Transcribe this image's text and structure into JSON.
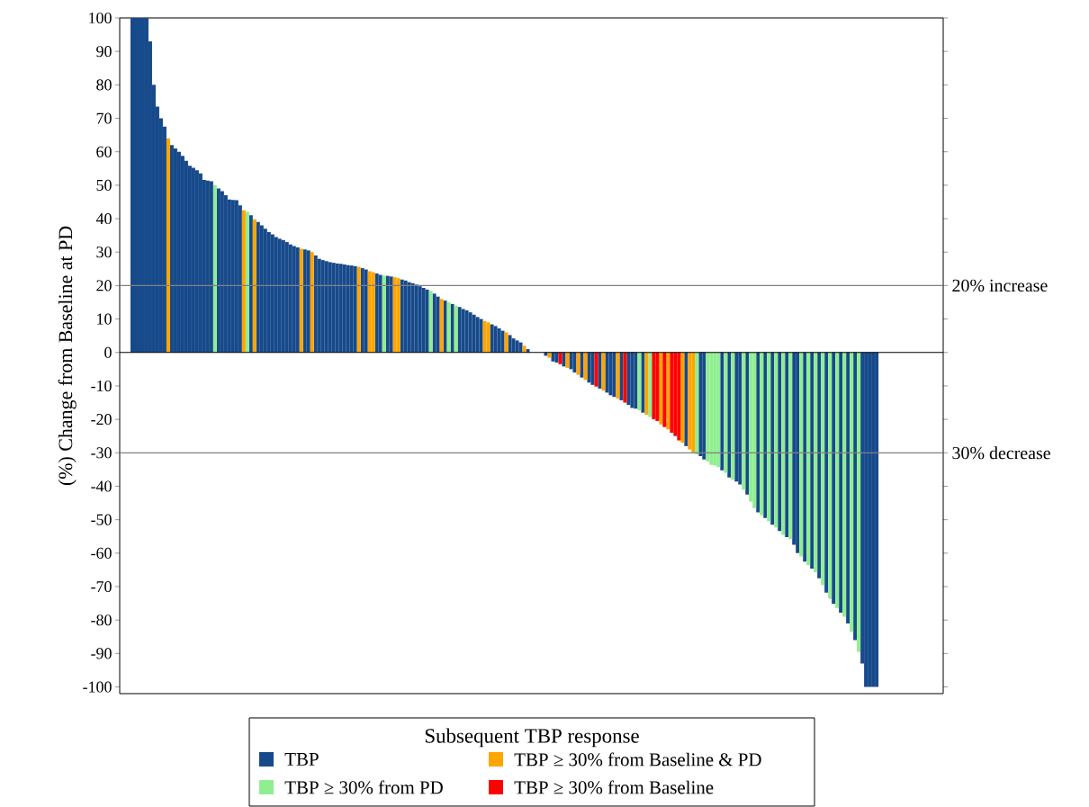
{
  "chart_data": {
    "type": "bar",
    "ylabel": "(%) Change from Baseline at PD",
    "legend_title": "Subsequent TBP response",
    "legend": "bottom",
    "categories": [
      null,
      null,
      null,
      null,
      null,
      null,
      null,
      null,
      null,
      null,
      null,
      null,
      null,
      null,
      null,
      null,
      null,
      null,
      null,
      null,
      null,
      null,
      null,
      null,
      null,
      null,
      null,
      null,
      null,
      null,
      null,
      null,
      null,
      null,
      null,
      null,
      null,
      null,
      null,
      null,
      null,
      null,
      null,
      null,
      null,
      null,
      null,
      null,
      null,
      null,
      null,
      null,
      null,
      null,
      null,
      null,
      null,
      null,
      null,
      null,
      null,
      null,
      null,
      null,
      null,
      null,
      null,
      null,
      null,
      null,
      null,
      null,
      null,
      null,
      null,
      null,
      null,
      null,
      null,
      null,
      null,
      null,
      null,
      null,
      null,
      null,
      null,
      null,
      null,
      null,
      null,
      null,
      null,
      null,
      null,
      null,
      null,
      null,
      null,
      null,
      null,
      null,
      null,
      null,
      null,
      null,
      null,
      null,
      null,
      null,
      null,
      null,
      null,
      null,
      null,
      null,
      null,
      null,
      null,
      null,
      null,
      null,
      null,
      null,
      null,
      null,
      null,
      null,
      null,
      null,
      null,
      null,
      null,
      null,
      null,
      null,
      null,
      null,
      null,
      null,
      null,
      null,
      null,
      null,
      null,
      null,
      null,
      null,
      null,
      null,
      null,
      null,
      null,
      null,
      null,
      null,
      null,
      null,
      null,
      null,
      null,
      null,
      null,
      null,
      null,
      null,
      null,
      null,
      null,
      null,
      null,
      null,
      null,
      null,
      null,
      null,
      null,
      null,
      null,
      null,
      null,
      null,
      null,
      null,
      null,
      null,
      null,
      null,
      null,
      null,
      null,
      null,
      null,
      null,
      null,
      null,
      null,
      null,
      null,
      null,
      null,
      null,
      null,
      null,
      null,
      null,
      null,
      null,
      null,
      null,
      null,
      null,
      null,
      null,
      null,
      null,
      null,
      null,
      null,
      null,
      null,
      null,
      null,
      null,
      null,
      null,
      null,
      null,
      null
    ],
    "ylim": [
      -102,
      100
    ],
    "yticks": [
      -100,
      -90,
      -80,
      -70,
      -60,
      -50,
      -40,
      -30,
      -20,
      -10,
      0,
      10,
      20,
      30,
      40,
      50,
      60,
      70,
      80,
      90,
      100
    ],
    "series": [
      {
        "name": "TBP",
        "color": "#174a8b",
        "values": [
          null,
          null,
          null,
          100,
          100,
          100,
          100,
          100,
          93,
          80,
          73.5,
          70,
          67.5,
          null,
          62,
          61,
          60,
          58.8,
          57.3,
          55.8,
          55.2,
          54.5,
          53.5,
          51.6,
          51.4,
          51.2,
          null,
          49,
          48.2,
          47,
          45.7,
          45.6,
          45.5,
          44,
          null,
          null,
          41,
          null,
          39,
          38,
          37,
          36,
          35.3,
          34.5,
          34,
          33.6,
          33,
          32.3,
          31.8,
          31.4,
          null,
          30.8,
          30.5,
          null,
          29,
          28,
          27.6,
          27.3,
          27,
          26.8,
          26.6,
          26.5,
          26.3,
          26.1,
          26,
          25.8,
          null,
          25.2,
          24.8,
          null,
          null,
          23.6,
          23.2,
          null,
          22.9,
          22.7,
          null,
          null,
          21.8,
          21.5,
          21,
          20.7,
          20.3,
          19.8,
          19.3,
          18.8,
          null,
          17.6,
          16.7,
          null,
          15.5,
          null,
          14.5,
          null,
          13.6,
          13,
          12.6,
          12,
          11.3,
          10.6,
          10,
          null,
          null,
          8.4,
          7.9,
          7.2,
          6.5,
          null,
          5.2,
          4.2,
          3.6,
          3,
          null,
          1,
          0,
          0,
          0,
          0,
          -1,
          null,
          -2.7,
          -3,
          null,
          -4.2,
          null,
          -5,
          -6,
          null,
          -7.5,
          null,
          -9,
          -9.7,
          null,
          -10.8,
          null,
          -12,
          -12.8,
          -13.3,
          null,
          -14.3,
          null,
          -15.7,
          -16.6,
          -16.8,
          null,
          -18,
          null,
          null,
          null,
          null,
          null,
          null,
          null,
          null,
          null,
          null,
          null,
          -28,
          null,
          null,
          null,
          -31,
          -32,
          null,
          null,
          null,
          null,
          -35.2,
          null,
          -37.4,
          null,
          -38.6,
          -39.5,
          null,
          -42.5,
          null,
          null,
          -47.8,
          null,
          -49.5,
          null,
          -51.5,
          null,
          -53.4,
          null,
          -55.2,
          null,
          -57.5,
          -60,
          null,
          -62.5,
          null,
          -64.6,
          null,
          -67.5,
          null,
          -71.8,
          null,
          -75.2,
          null,
          -77.8,
          null,
          -81,
          null,
          -86,
          null,
          -93,
          -100,
          -100,
          -100,
          -100,
          null,
          null,
          null,
          null,
          null,
          null,
          null,
          null,
          null,
          null,
          null,
          null,
          null,
          null,
          null,
          null,
          null,
          null
        ]
      },
      {
        "name": "TBP ≥ 30% from PD",
        "color": "#90ee90",
        "values": [
          null,
          null,
          null,
          null,
          null,
          null,
          null,
          null,
          null,
          null,
          null,
          null,
          null,
          null,
          null,
          null,
          null,
          null,
          null,
          null,
          null,
          null,
          null,
          null,
          null,
          null,
          50,
          null,
          null,
          null,
          null,
          null,
          null,
          null,
          null,
          42,
          null,
          null,
          null,
          null,
          null,
          null,
          null,
          null,
          null,
          null,
          null,
          null,
          null,
          null,
          null,
          null,
          null,
          null,
          null,
          null,
          null,
          null,
          null,
          null,
          null,
          null,
          null,
          null,
          null,
          null,
          null,
          null,
          null,
          null,
          null,
          null,
          null,
          23,
          null,
          null,
          null,
          null,
          null,
          null,
          null,
          null,
          null,
          null,
          null,
          null,
          18.4,
          null,
          null,
          null,
          null,
          15,
          null,
          14,
          null,
          null,
          null,
          null,
          null,
          null,
          null,
          null,
          null,
          null,
          null,
          null,
          null,
          null,
          null,
          null,
          null,
          null,
          null,
          null,
          null,
          null,
          null,
          null,
          null,
          null,
          null,
          null,
          null,
          null,
          null,
          null,
          null,
          null,
          null,
          null,
          null,
          null,
          null,
          null,
          null,
          null,
          null,
          null,
          null,
          null,
          null,
          null,
          null,
          null,
          -17.3,
          null,
          null,
          -19.3,
          null,
          null,
          null,
          null,
          null,
          null,
          null,
          null,
          null,
          null,
          null,
          null,
          -30.5,
          null,
          null,
          -32.6,
          -33.6,
          -33.8,
          -34.3,
          null,
          -36,
          null,
          -38,
          null,
          null,
          -41,
          null,
          -44.6,
          -46.5,
          null,
          -48.7,
          null,
          -50.5,
          null,
          -52.3,
          null,
          -54.5,
          null,
          -55.8,
          null,
          null,
          -61,
          null,
          -63.6,
          null,
          -65.7,
          null,
          -69.5,
          null,
          -73.6,
          null,
          -76.4,
          null,
          -79,
          null,
          -83.5,
          null,
          -89.5,
          null,
          null,
          null,
          null,
          null,
          null,
          null,
          null,
          null,
          null,
          null,
          null,
          null,
          null,
          null,
          null,
          null,
          null,
          null,
          null,
          null,
          null,
          null
        ]
      },
      {
        "name": "TBP ≥ 30% from Baseline & PD",
        "color": "#ffa500",
        "values": [
          null,
          null,
          null,
          null,
          null,
          null,
          null,
          null,
          null,
          null,
          null,
          null,
          null,
          64,
          null,
          null,
          null,
          null,
          null,
          null,
          null,
          null,
          null,
          null,
          null,
          null,
          null,
          null,
          null,
          null,
          null,
          null,
          null,
          null,
          42.5,
          null,
          null,
          39.8,
          null,
          null,
          null,
          null,
          null,
          null,
          null,
          null,
          null,
          null,
          null,
          null,
          31,
          null,
          null,
          30,
          null,
          null,
          null,
          null,
          null,
          null,
          null,
          null,
          null,
          null,
          null,
          null,
          25.6,
          null,
          null,
          24.3,
          24,
          null,
          null,
          null,
          null,
          null,
          22.5,
          22.2,
          null,
          null,
          null,
          null,
          null,
          null,
          null,
          null,
          null,
          null,
          null,
          16,
          null,
          null,
          null,
          null,
          null,
          null,
          null,
          null,
          null,
          null,
          null,
          9.4,
          9,
          null,
          null,
          null,
          null,
          6,
          null,
          null,
          null,
          null,
          2,
          null,
          null,
          null,
          null,
          null,
          null,
          -1.6,
          null,
          null,
          null,
          null,
          -4.6,
          null,
          null,
          -6.7,
          null,
          -8.2,
          null,
          null,
          null,
          null,
          -11.4,
          null,
          null,
          null,
          -13.8,
          null,
          null,
          null,
          null,
          null,
          null,
          null,
          -18.6,
          null,
          null,
          null,
          -21.5,
          null,
          -23,
          null,
          null,
          null,
          -27,
          null,
          -29,
          -30,
          null,
          null,
          null,
          null,
          null,
          null,
          null,
          null,
          null,
          null,
          null,
          null,
          null,
          null,
          null,
          null,
          null,
          null,
          null,
          null,
          null,
          null,
          null,
          null,
          null,
          null,
          null,
          null,
          null,
          null,
          null,
          null,
          null,
          null,
          null,
          null,
          null,
          null,
          null,
          null,
          null,
          null,
          null,
          null,
          null,
          null,
          null,
          null,
          null,
          null,
          null,
          null,
          null,
          null,
          null,
          null,
          null,
          null,
          null,
          null,
          null,
          null,
          null,
          null,
          null,
          null,
          null,
          null,
          null
        ]
      },
      {
        "name": "TBP ≥ 30% from Baseline",
        "color": "#ff0000",
        "values": [
          null,
          null,
          null,
          null,
          null,
          null,
          null,
          null,
          null,
          null,
          null,
          null,
          null,
          null,
          null,
          null,
          null,
          null,
          null,
          null,
          null,
          null,
          null,
          null,
          null,
          null,
          null,
          null,
          null,
          null,
          null,
          null,
          null,
          null,
          null,
          null,
          null,
          null,
          null,
          null,
          null,
          null,
          null,
          null,
          null,
          null,
          null,
          null,
          null,
          null,
          null,
          null,
          null,
          null,
          null,
          null,
          null,
          null,
          null,
          null,
          null,
          null,
          null,
          null,
          null,
          null,
          null,
          null,
          null,
          null,
          null,
          null,
          null,
          null,
          null,
          null,
          null,
          null,
          null,
          null,
          null,
          null,
          null,
          null,
          null,
          null,
          null,
          null,
          null,
          null,
          null,
          null,
          null,
          null,
          null,
          null,
          null,
          null,
          null,
          null,
          null,
          null,
          null,
          null,
          null,
          null,
          null,
          null,
          null,
          null,
          null,
          null,
          null,
          null,
          null,
          null,
          null,
          null,
          null,
          null,
          null,
          null,
          -3.5,
          null,
          null,
          null,
          null,
          null,
          null,
          null,
          null,
          null,
          -10.2,
          null,
          null,
          null,
          null,
          null,
          null,
          null,
          -15,
          null,
          null,
          null,
          null,
          null,
          null,
          null,
          -20,
          -20.5,
          null,
          -22.3,
          null,
          -24,
          -25,
          -26.3,
          null,
          null,
          null,
          null,
          null,
          null,
          null,
          null,
          null,
          null,
          null,
          null,
          null,
          null,
          null,
          null,
          null,
          null,
          null,
          null,
          null,
          null,
          null,
          null,
          null,
          null,
          null,
          null,
          null,
          null,
          null,
          null,
          null,
          null,
          null,
          null,
          null,
          null,
          null,
          null,
          null,
          null,
          null,
          null,
          null,
          null,
          null,
          null,
          null,
          null,
          null,
          null,
          null,
          null,
          null,
          null,
          null,
          null,
          null,
          null,
          null,
          null,
          null,
          null,
          null,
          null,
          null,
          null,
          null,
          null,
          null,
          null,
          null
        ]
      }
    ],
    "ref_lines": [
      {
        "axis": "y",
        "value": 0,
        "color": "#000000"
      },
      {
        "axis": "y",
        "value": 20,
        "label": "20% increase",
        "color": "#808080"
      },
      {
        "axis": "y",
        "value": -30,
        "label": "30% decrease",
        "color": "#808080"
      }
    ]
  }
}
